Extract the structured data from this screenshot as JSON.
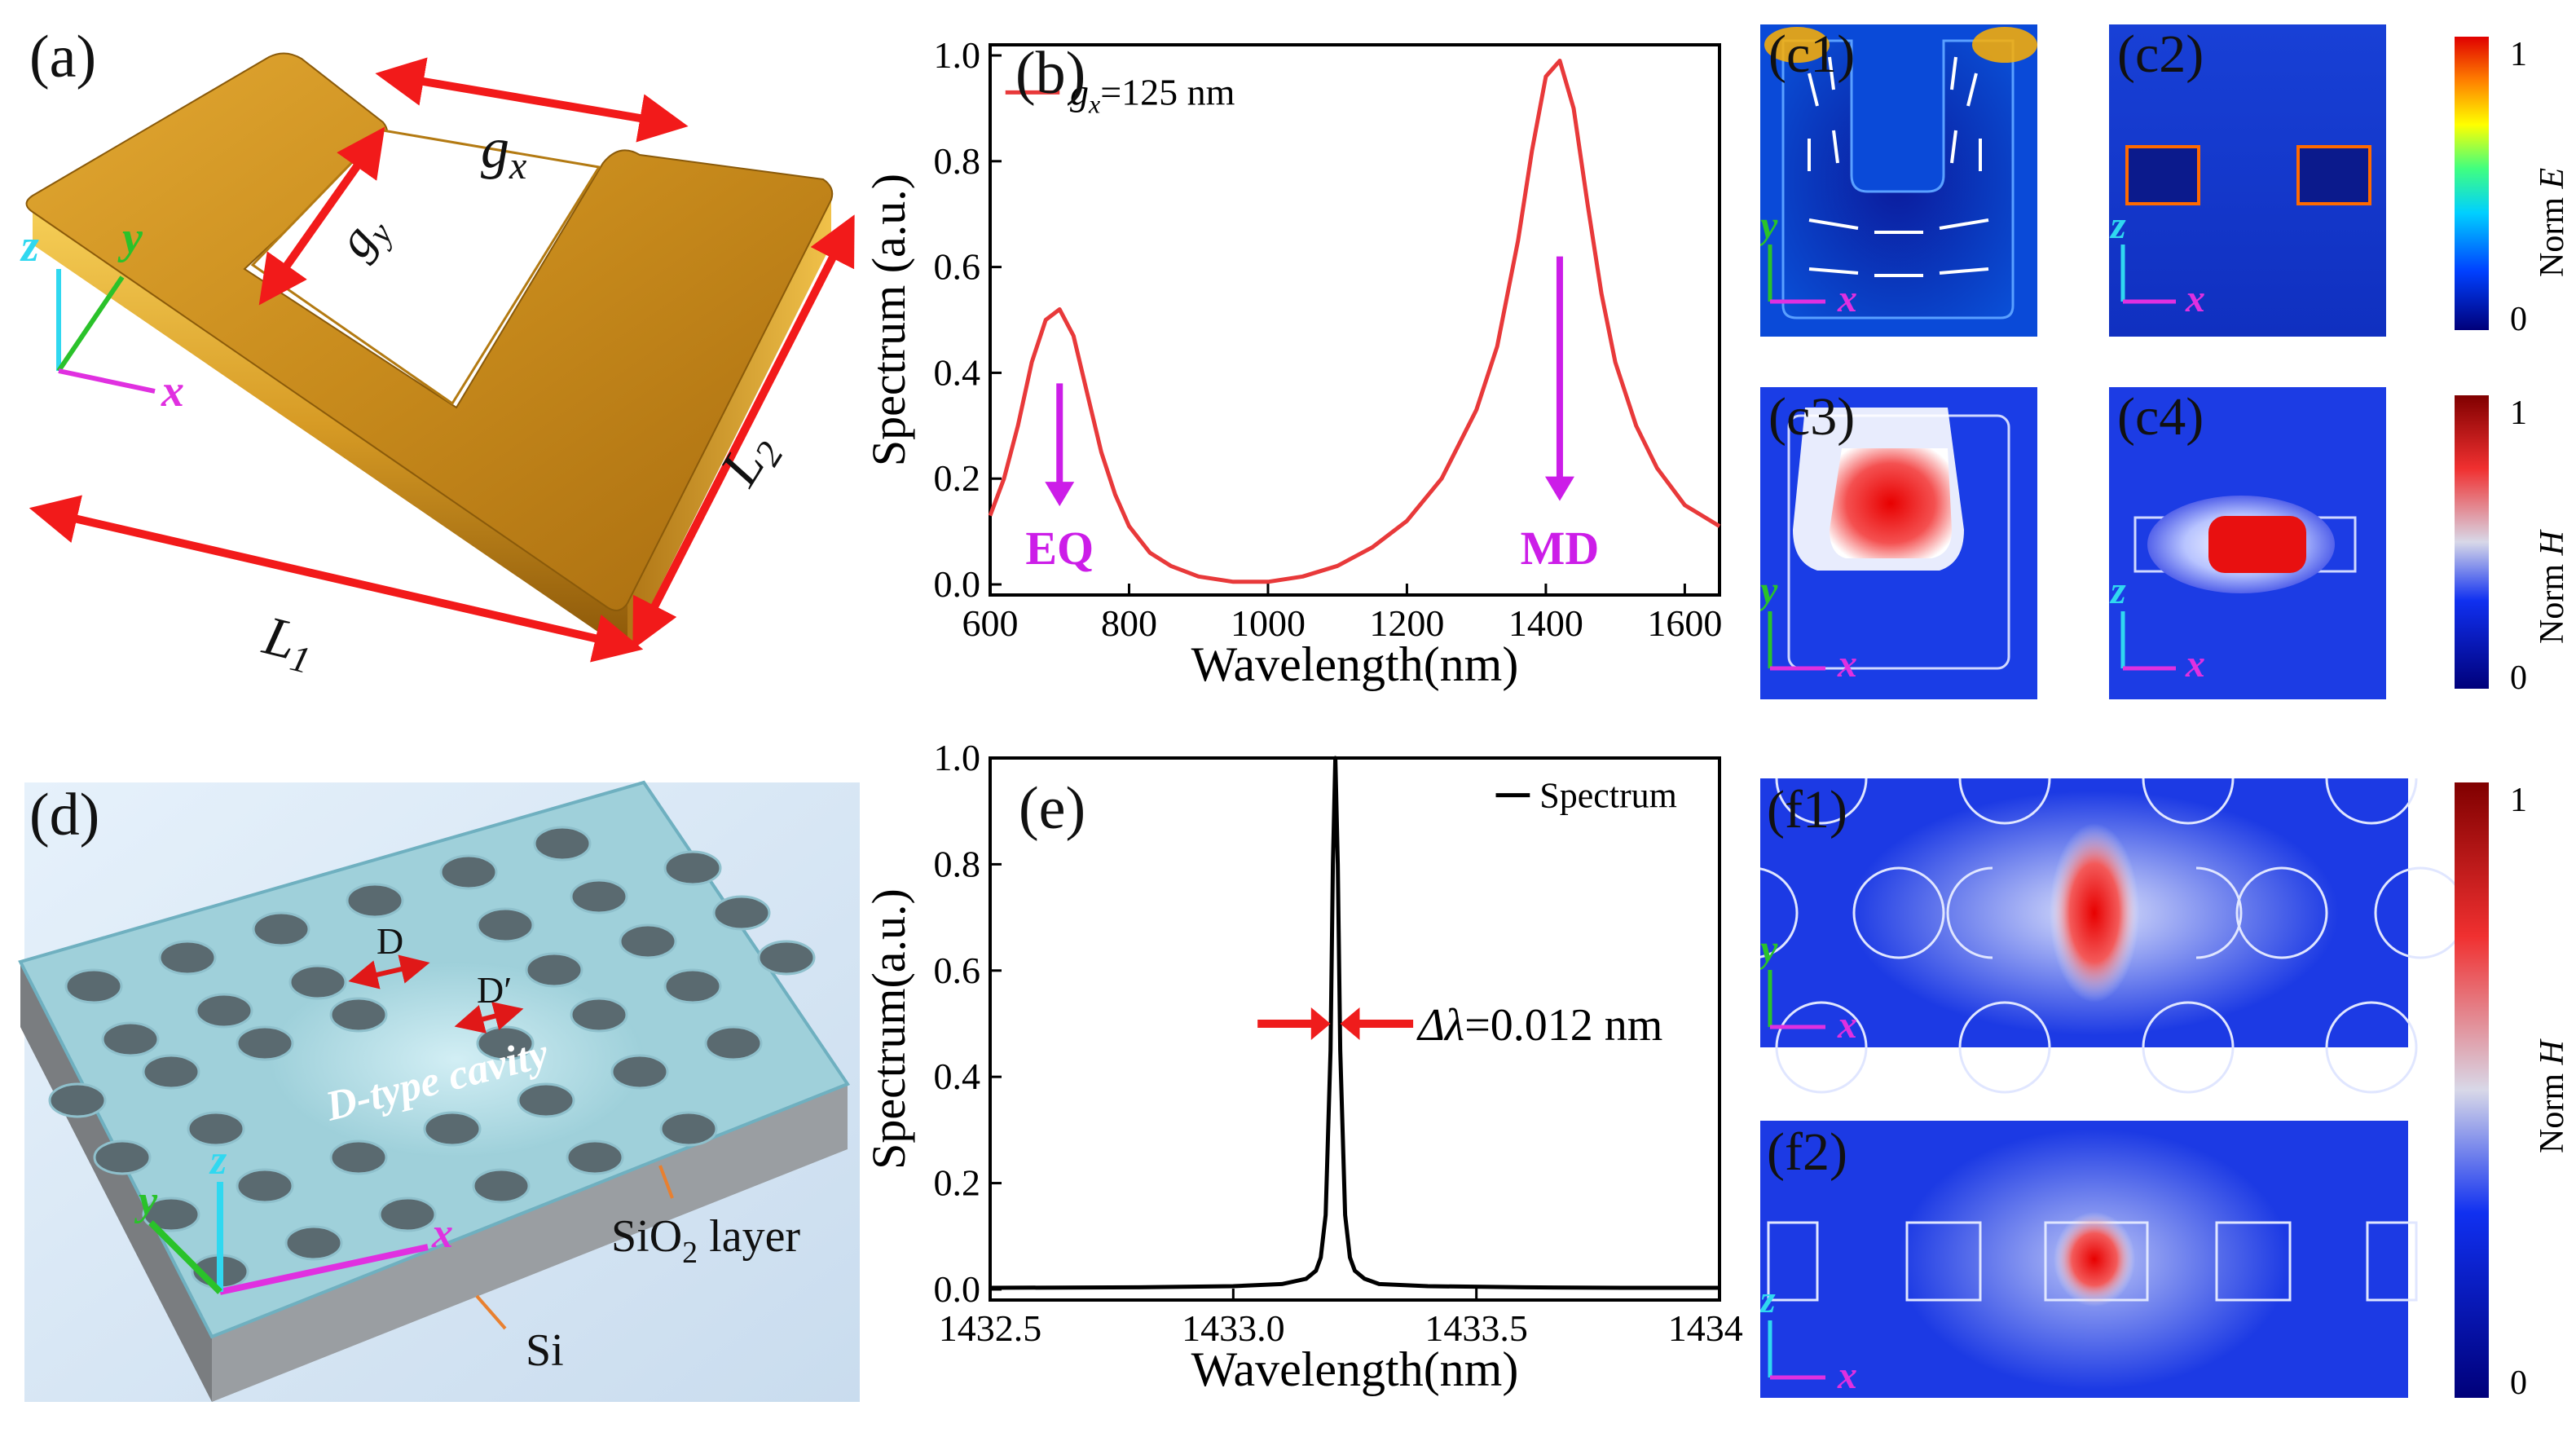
{
  "panels": {
    "a": {
      "label": "(a)",
      "gx": "g",
      "gx_sub": "x",
      "gy": "g",
      "gy_sub": "y",
      "L1": "L",
      "L1_sub": "1",
      "L2": "L",
      "L2_sub": "2"
    },
    "b": {
      "label": "(b)",
      "eq": "EQ",
      "md": "MD"
    },
    "c1": {
      "label": "(c1)"
    },
    "c2": {
      "label": "(c2)"
    },
    "c3": {
      "label": "(c3)"
    },
    "c4": {
      "label": "(c4)"
    },
    "d": {
      "label": "(d)",
      "D": "D",
      "Dp": "D′",
      "cavity": "D-type cavity",
      "sio2_pre": "SiO",
      "sio2_sub": "2",
      "sio2_post": " layer",
      "si": "Si"
    },
    "e": {
      "label": "(e)",
      "delta_label": "Δλ",
      "delta_value": "=0.012 nm"
    },
    "f1": {
      "label": "(f1)"
    },
    "f2": {
      "label": "(f2)"
    }
  },
  "axes_labels": {
    "x": "x",
    "y": "y",
    "z": "z"
  },
  "colorbars": {
    "E": {
      "title": "Norm ",
      "title_italic": "E",
      "max": "1",
      "min": "0"
    },
    "H1": {
      "title": "Norm ",
      "title_italic": "H",
      "max": "1",
      "min": "0"
    },
    "H2": {
      "title": "Norm ",
      "title_italic": "H",
      "max": "1",
      "min": "0"
    }
  },
  "chart_data": [
    {
      "id": "b",
      "type": "line",
      "title": "",
      "xlabel": "Wavelength(nm)",
      "ylabel": "Spectrum (a.u.)",
      "xlim": [
        600,
        1650
      ],
      "ylim": [
        -0.02,
        1.02
      ],
      "xticks": [
        600,
        800,
        1000,
        1200,
        1400,
        1600
      ],
      "xtick_labels": [
        "600",
        "800",
        "1000",
        "1200",
        "1400",
        "1600"
      ],
      "yticks": [
        0.0,
        0.2,
        0.4,
        0.6,
        0.8,
        1.0
      ],
      "ytick_labels": [
        "0.0",
        "0.2",
        "0.4",
        "0.6",
        "0.8",
        "1.0"
      ],
      "series": [
        {
          "name": "g_x=125 nm",
          "legend_prefix": "g",
          "legend_sub": "x",
          "legend_suffix": "=125 nm",
          "color": "#e8393a",
          "x": [
            600,
            620,
            640,
            660,
            680,
            700,
            720,
            740,
            760,
            780,
            800,
            830,
            860,
            900,
            950,
            1000,
            1050,
            1100,
            1150,
            1200,
            1250,
            1300,
            1330,
            1360,
            1380,
            1400,
            1420,
            1440,
            1460,
            1480,
            1500,
            1530,
            1560,
            1600,
            1650
          ],
          "values": [
            0.13,
            0.2,
            0.3,
            0.42,
            0.5,
            0.52,
            0.47,
            0.36,
            0.25,
            0.17,
            0.11,
            0.06,
            0.035,
            0.015,
            0.005,
            0.005,
            0.015,
            0.035,
            0.07,
            0.12,
            0.2,
            0.33,
            0.45,
            0.65,
            0.82,
            0.96,
            0.99,
            0.9,
            0.72,
            0.55,
            0.42,
            0.3,
            0.22,
            0.15,
            0.11
          ]
        }
      ],
      "annotations": [
        {
          "text": "EQ",
          "x": 700,
          "color": "#cc1de8"
        },
        {
          "text": "MD",
          "x": 1420,
          "color": "#cc1de8"
        }
      ]
    },
    {
      "id": "e",
      "type": "line",
      "title": "",
      "xlabel": "Wavelength(nm)",
      "ylabel": "Spectrum(a.u.)",
      "xlim": [
        1432.5,
        1434.0
      ],
      "ylim": [
        -0.02,
        1.0
      ],
      "xticks": [
        1432.5,
        1433.0,
        1433.5,
        1434.0
      ],
      "xtick_labels": [
        "1432.5",
        "1433.0",
        "1433.5",
        "1434.0"
      ],
      "yticks": [
        0.0,
        0.2,
        0.4,
        0.6,
        0.8,
        1.0
      ],
      "ytick_labels": [
        "0.0",
        "0.2",
        "0.4",
        "0.6",
        "0.8",
        "1.0"
      ],
      "series": [
        {
          "name": "Spectrum",
          "color": "#000000",
          "x": [
            1432.5,
            1432.8,
            1433.0,
            1433.1,
            1433.15,
            1433.17,
            1433.18,
            1433.19,
            1433.2,
            1433.205,
            1433.21,
            1433.215,
            1433.22,
            1433.23,
            1433.24,
            1433.25,
            1433.27,
            1433.3,
            1433.4,
            1433.6,
            1433.8,
            1434.0
          ],
          "values": [
            0.003,
            0.004,
            0.006,
            0.01,
            0.02,
            0.035,
            0.06,
            0.14,
            0.45,
            0.8,
            1.0,
            0.8,
            0.45,
            0.14,
            0.06,
            0.035,
            0.02,
            0.01,
            0.006,
            0.004,
            0.003,
            0.003
          ]
        }
      ]
    }
  ]
}
